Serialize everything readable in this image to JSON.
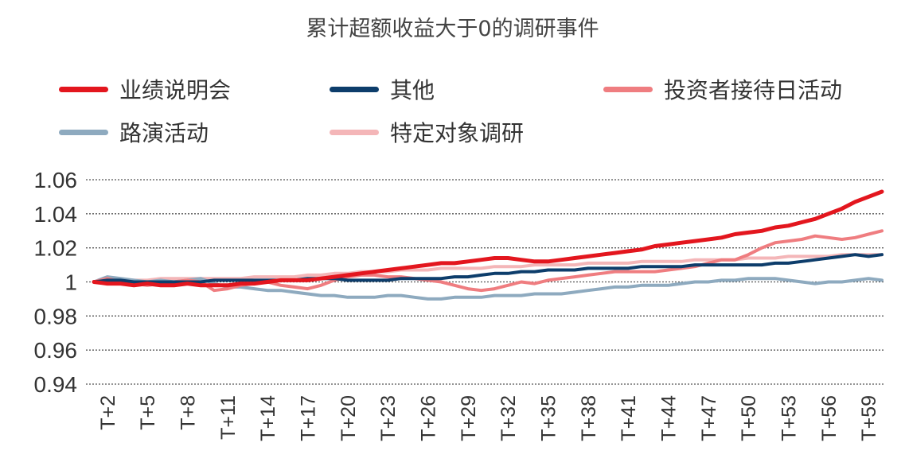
{
  "chart_data": {
    "type": "line",
    "title": "累计超额收益大于0的调研事件",
    "xlabel": "",
    "ylabel": "",
    "ylim": [
      0.94,
      1.06
    ],
    "yticks": [
      "1.06",
      "1.04",
      "1.02",
      "1",
      "0.98",
      "0.96",
      "0.94"
    ],
    "ytick_values": [
      1.06,
      1.04,
      1.02,
      1.0,
      0.98,
      0.96,
      0.94
    ],
    "grid": true,
    "legend_position": "top",
    "x_tick_labels": [
      "T+2",
      "T+5",
      "T+8",
      "T+11",
      "T+14",
      "T+17",
      "T+20",
      "T+23",
      "T+26",
      "T+29",
      "T+32",
      "T+35",
      "T+38",
      "T+41",
      "T+44",
      "T+47",
      "T+50",
      "T+53",
      "T+56",
      "T+59"
    ],
    "x": [
      0,
      1,
      2,
      3,
      4,
      5,
      6,
      7,
      8,
      9,
      10,
      11,
      12,
      13,
      14,
      15,
      16,
      17,
      18,
      19,
      20,
      21,
      22,
      23,
      24,
      25,
      26,
      27,
      28,
      29,
      30,
      31,
      32,
      33,
      34,
      35,
      36,
      37,
      38,
      39,
      40,
      41,
      42,
      43,
      44,
      45,
      46,
      47,
      48,
      49,
      50,
      51,
      52,
      53,
      54,
      55,
      56,
      57,
      58,
      59
    ],
    "series": [
      {
        "name": "业绩说明会",
        "color": "#e3161e",
        "values": [
          1.0,
          0.999,
          0.999,
          0.998,
          0.999,
          0.998,
          0.998,
          0.999,
          0.998,
          0.998,
          0.998,
          0.999,
          0.999,
          1.0,
          1.001,
          1.001,
          1.001,
          1.002,
          1.003,
          1.004,
          1.005,
          1.006,
          1.007,
          1.008,
          1.009,
          1.01,
          1.011,
          1.011,
          1.012,
          1.013,
          1.014,
          1.014,
          1.013,
          1.012,
          1.012,
          1.013,
          1.014,
          1.015,
          1.016,
          1.017,
          1.018,
          1.019,
          1.021,
          1.022,
          1.023,
          1.024,
          1.025,
          1.026,
          1.028,
          1.029,
          1.03,
          1.032,
          1.033,
          1.035,
          1.037,
          1.04,
          1.043,
          1.047,
          1.05,
          1.053
        ]
      },
      {
        "name": "其他",
        "color": "#0d3d6b",
        "values": [
          1.0,
          1.001,
          1.001,
          1.0,
          1.0,
          1.0,
          1.0,
          1.0,
          1.0,
          1.001,
          1.001,
          1.001,
          1.001,
          1.001,
          1.001,
          1.001,
          1.002,
          1.002,
          1.002,
          1.001,
          1.001,
          1.001,
          1.001,
          1.002,
          1.002,
          1.002,
          1.002,
          1.003,
          1.003,
          1.004,
          1.005,
          1.005,
          1.006,
          1.006,
          1.007,
          1.007,
          1.007,
          1.008,
          1.008,
          1.008,
          1.008,
          1.009,
          1.009,
          1.009,
          1.009,
          1.01,
          1.01,
          1.01,
          1.01,
          1.01,
          1.01,
          1.011,
          1.011,
          1.012,
          1.013,
          1.014,
          1.015,
          1.016,
          1.015,
          1.016
        ]
      },
      {
        "name": "投资者接待日活动",
        "color": "#ef7d80",
        "values": [
          1.0,
          1.002,
          1.0,
          0.999,
          0.998,
          0.999,
          1.0,
          1.001,
          1.0,
          0.995,
          0.996,
          0.998,
          0.999,
          1.0,
          0.998,
          0.997,
          0.996,
          0.998,
          1.001,
          1.003,
          1.004,
          1.004,
          1.003,
          1.003,
          1.002,
          1.001,
          1.0,
          0.998,
          0.996,
          0.995,
          0.996,
          0.998,
          1.0,
          0.999,
          1.001,
          1.002,
          1.003,
          1.004,
          1.005,
          1.006,
          1.006,
          1.006,
          1.006,
          1.007,
          1.008,
          1.009,
          1.011,
          1.013,
          1.013,
          1.016,
          1.02,
          1.023,
          1.024,
          1.025,
          1.027,
          1.026,
          1.025,
          1.026,
          1.028,
          1.03
        ]
      },
      {
        "name": "路演活动",
        "color": "#8eaabf",
        "values": [
          1.0,
          1.003,
          1.002,
          1.001,
          1.0,
          1.001,
          1.0,
          1.001,
          1.002,
          0.999,
          0.997,
          0.997,
          0.996,
          0.995,
          0.995,
          0.994,
          0.993,
          0.992,
          0.992,
          0.991,
          0.991,
          0.991,
          0.992,
          0.992,
          0.991,
          0.99,
          0.99,
          0.991,
          0.991,
          0.991,
          0.992,
          0.992,
          0.992,
          0.993,
          0.993,
          0.993,
          0.994,
          0.995,
          0.996,
          0.997,
          0.997,
          0.998,
          0.998,
          0.998,
          0.999,
          1.0,
          1.0,
          1.001,
          1.001,
          1.002,
          1.002,
          1.002,
          1.001,
          1.0,
          0.999,
          1.0,
          1.0,
          1.001,
          1.002,
          1.001
        ]
      },
      {
        "name": "特定对象调研",
        "color": "#f4b6b8",
        "values": [
          1.0,
          1.001,
          1.001,
          1.001,
          1.001,
          1.002,
          1.002,
          1.002,
          1.002,
          1.002,
          1.002,
          1.002,
          1.003,
          1.003,
          1.003,
          1.003,
          1.004,
          1.004,
          1.005,
          1.005,
          1.006,
          1.006,
          1.006,
          1.007,
          1.007,
          1.007,
          1.008,
          1.008,
          1.008,
          1.008,
          1.009,
          1.009,
          1.009,
          1.01,
          1.01,
          1.01,
          1.01,
          1.011,
          1.011,
          1.011,
          1.011,
          1.012,
          1.012,
          1.012,
          1.012,
          1.013,
          1.013,
          1.013,
          1.013,
          1.014,
          1.014,
          1.014,
          1.015,
          1.015,
          1.015,
          1.015,
          1.016,
          1.016,
          1.016,
          1.016
        ]
      }
    ]
  }
}
